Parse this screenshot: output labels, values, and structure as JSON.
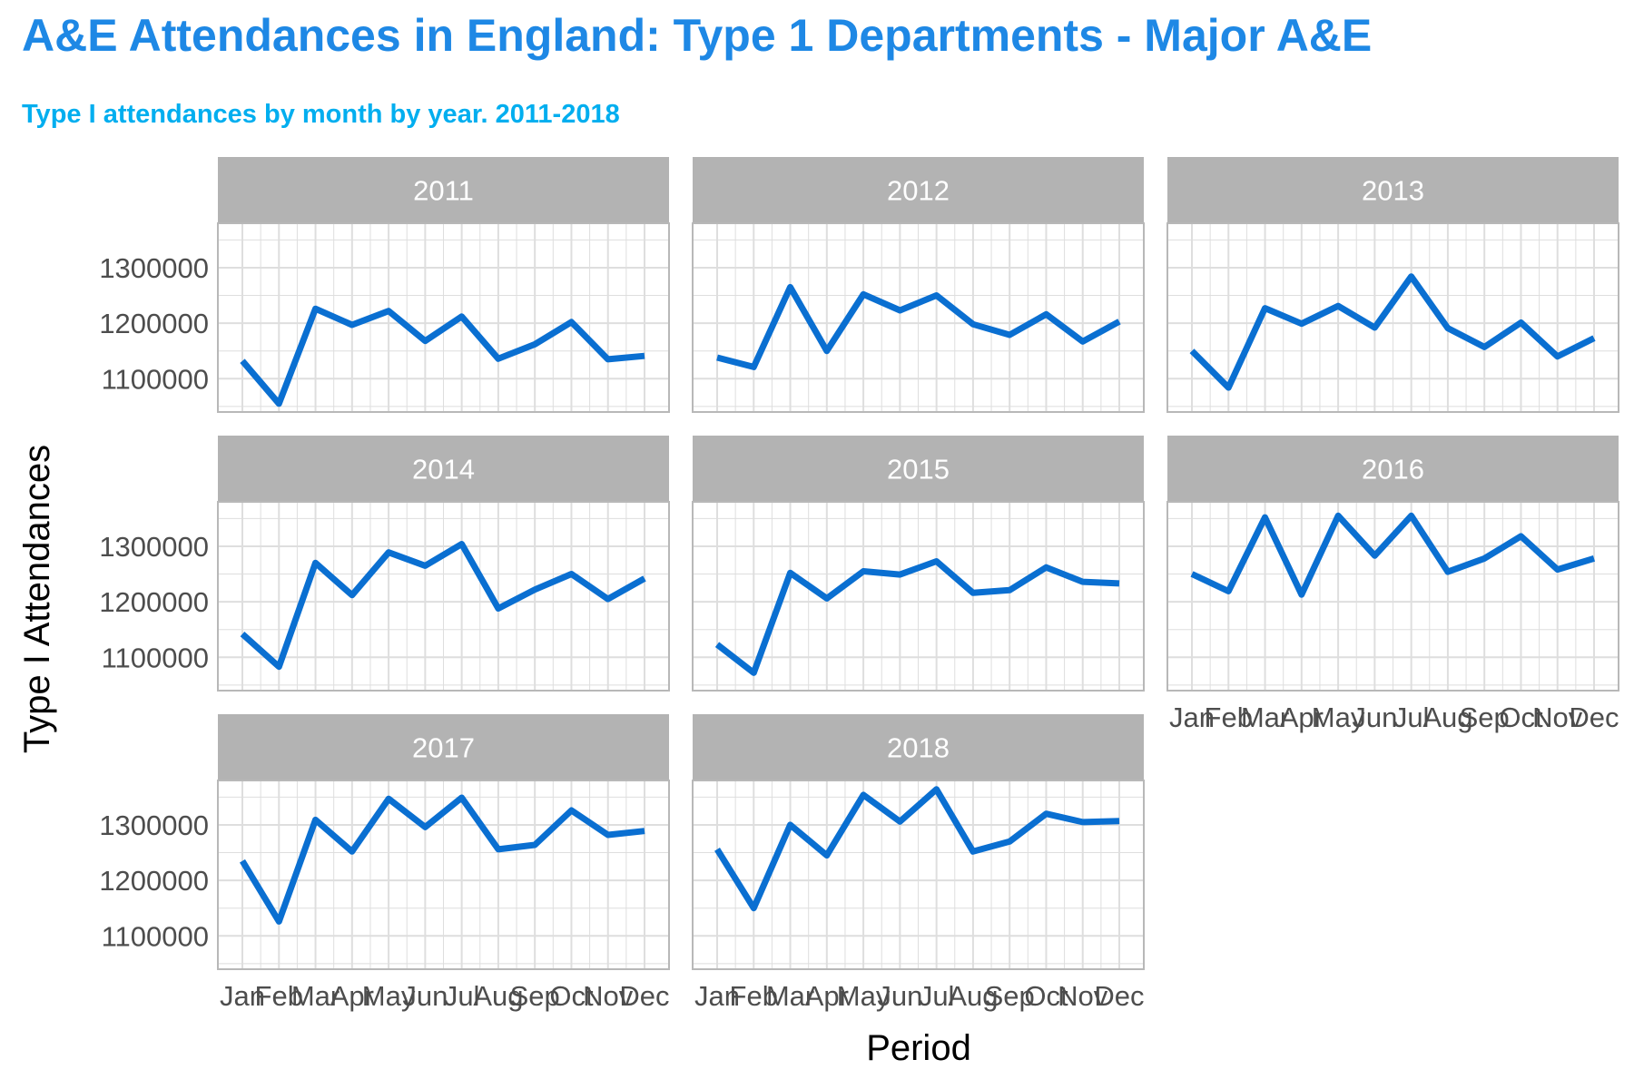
{
  "title": "A&E Attendances in England: Type 1 Departments - Major A&E",
  "subtitle": "Type I attendances by month by year. 2011-2018",
  "colors": {
    "title": "#1E88E5",
    "subtitle": "#00AEEF",
    "line": "#0A6FD1",
    "strip": "#B3B3B3",
    "grid": "#DEDEDE",
    "panel_border": "#B8B8B8"
  },
  "chart_data": {
    "type": "line",
    "facet": "year",
    "xlabel": "Period",
    "ylabel": "Type I Attendances",
    "categories": [
      "Jan",
      "Feb",
      "Mar",
      "Apr",
      "May",
      "Jun",
      "Jul",
      "Aug",
      "Sep",
      "Oct",
      "Nov",
      "Dec"
    ],
    "y_ticks": [
      1100000,
      1200000,
      1300000
    ],
    "ylim": [
      1040000,
      1380000
    ],
    "grid": true,
    "legend": "none",
    "panels": [
      {
        "year": "2011",
        "values": [
          1132000,
          1055000,
          1226000,
          1197000,
          1222000,
          1168000,
          1212000,
          1136000,
          1162000,
          1202000,
          1135000,
          1141000
        ]
      },
      {
        "year": "2012",
        "values": [
          1138000,
          1121000,
          1265000,
          1150000,
          1252000,
          1223000,
          1250000,
          1198000,
          1179000,
          1216000,
          1167000,
          1203000
        ]
      },
      {
        "year": "2013",
        "values": [
          1150000,
          1084000,
          1227000,
          1199000,
          1231000,
          1192000,
          1284000,
          1191000,
          1157000,
          1201000,
          1140000,
          1173000
        ]
      },
      {
        "year": "2014",
        "values": [
          1142000,
          1083000,
          1270000,
          1212000,
          1289000,
          1265000,
          1304000,
          1188000,
          1222000,
          1250000,
          1205000,
          1242000
        ]
      },
      {
        "year": "2015",
        "values": [
          1123000,
          1072000,
          1252000,
          1206000,
          1255000,
          1249000,
          1273000,
          1216000,
          1221000,
          1262000,
          1236000,
          1233000
        ]
      },
      {
        "year": "2016",
        "values": [
          1250000,
          1219000,
          1352000,
          1213000,
          1355000,
          1283000,
          1355000,
          1254000,
          1278000,
          1318000,
          1258000,
          1278000
        ]
      },
      {
        "year": "2017",
        "values": [
          1235000,
          1126000,
          1309000,
          1252000,
          1347000,
          1296000,
          1349000,
          1256000,
          1264000,
          1326000,
          1282000,
          1289000
        ]
      },
      {
        "year": "2018",
        "values": [
          1256000,
          1150000,
          1300000,
          1245000,
          1354000,
          1306000,
          1364000,
          1252000,
          1270000,
          1320000,
          1305000,
          1307000
        ]
      }
    ]
  }
}
